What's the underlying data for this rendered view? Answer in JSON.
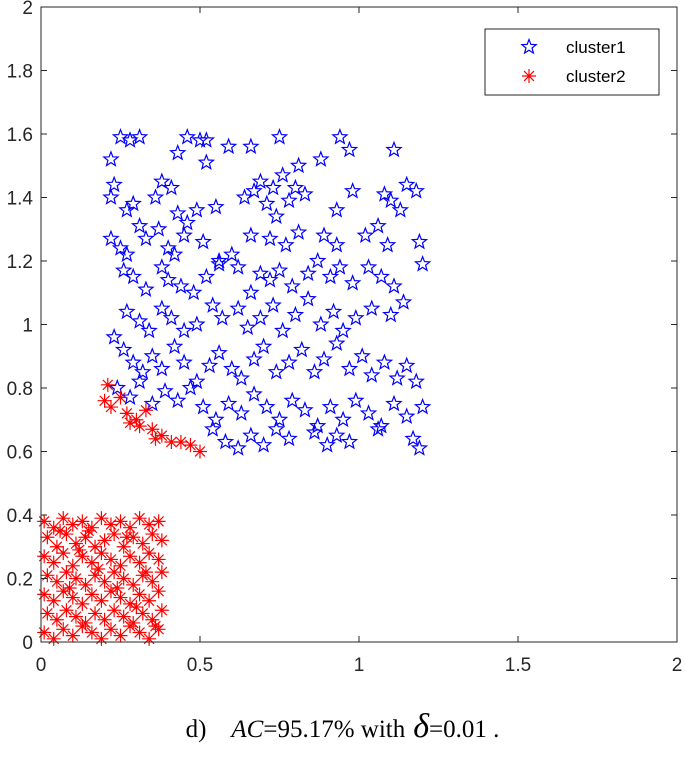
{
  "caption": {
    "prefix": "d)",
    "ac_symbol": "AC",
    "ac_text": "=95.17% with",
    "delta_symbol": "δ",
    "delta_text": "=0.01 ."
  },
  "chart_data": {
    "type": "scatter",
    "xlim": [
      0,
      2
    ],
    "ylim": [
      0,
      2
    ],
    "x_ticks": [
      "0",
      "0.5",
      "1",
      "1.5",
      "2"
    ],
    "y_ticks": [
      "0",
      "0.2",
      "0.4",
      "0.6",
      "0.8",
      "1",
      "1.2",
      "1.4",
      "1.6",
      "1.8",
      "2"
    ],
    "grid": false,
    "legend_position": "top-right",
    "series": [
      {
        "name": "cluster1",
        "marker": "pentagram",
        "color": "#0000ff",
        "points": [
          [
            0.25,
            1.59
          ],
          [
            0.28,
            1.58
          ],
          [
            0.31,
            1.59
          ],
          [
            0.46,
            1.59
          ],
          [
            0.5,
            1.58
          ],
          [
            0.52,
            1.58
          ],
          [
            0.75,
            1.59
          ],
          [
            0.94,
            1.59
          ],
          [
            1.11,
            1.55
          ],
          [
            0.22,
            1.52
          ],
          [
            0.43,
            1.54
          ],
          [
            0.52,
            1.51
          ],
          [
            0.59,
            1.56
          ],
          [
            0.66,
            1.56
          ],
          [
            0.81,
            1.5
          ],
          [
            0.88,
            1.52
          ],
          [
            0.97,
            1.55
          ],
          [
            0.23,
            1.44
          ],
          [
            0.38,
            1.45
          ],
          [
            0.41,
            1.43
          ],
          [
            0.69,
            1.45
          ],
          [
            0.73,
            1.43
          ],
          [
            0.76,
            1.47
          ],
          [
            0.8,
            1.43
          ],
          [
            0.83,
            1.41
          ],
          [
            0.98,
            1.42
          ],
          [
            1.15,
            1.44
          ],
          [
            0.22,
            1.4
          ],
          [
            0.27,
            1.36
          ],
          [
            0.29,
            1.38
          ],
          [
            0.36,
            1.4
          ],
          [
            0.43,
            1.35
          ],
          [
            0.46,
            1.32
          ],
          [
            0.49,
            1.36
          ],
          [
            0.55,
            1.37
          ],
          [
            0.64,
            1.4
          ],
          [
            0.67,
            1.42
          ],
          [
            0.71,
            1.38
          ],
          [
            0.74,
            1.34
          ],
          [
            0.78,
            1.39
          ],
          [
            0.93,
            1.36
          ],
          [
            1.08,
            1.41
          ],
          [
            1.1,
            1.39
          ],
          [
            1.13,
            1.36
          ],
          [
            1.18,
            1.42
          ],
          [
            0.22,
            1.27
          ],
          [
            0.25,
            1.24
          ],
          [
            0.27,
            1.22
          ],
          [
            0.31,
            1.31
          ],
          [
            0.33,
            1.27
          ],
          [
            0.37,
            1.3
          ],
          [
            0.4,
            1.24
          ],
          [
            0.42,
            1.22
          ],
          [
            0.45,
            1.28
          ],
          [
            0.51,
            1.26
          ],
          [
            0.56,
            1.2
          ],
          [
            0.6,
            1.22
          ],
          [
            0.66,
            1.28
          ],
          [
            0.72,
            1.27
          ],
          [
            0.77,
            1.25
          ],
          [
            0.81,
            1.29
          ],
          [
            0.89,
            1.28
          ],
          [
            0.93,
            1.25
          ],
          [
            1.02,
            1.28
          ],
          [
            1.06,
            1.31
          ],
          [
            1.09,
            1.25
          ],
          [
            1.19,
            1.26
          ],
          [
            0.26,
            1.17
          ],
          [
            0.29,
            1.15
          ],
          [
            0.33,
            1.11
          ],
          [
            0.38,
            1.18
          ],
          [
            0.4,
            1.14
          ],
          [
            0.44,
            1.12
          ],
          [
            0.48,
            1.1
          ],
          [
            0.52,
            1.15
          ],
          [
            0.56,
            1.19
          ],
          [
            0.62,
            1.18
          ],
          [
            0.66,
            1.1
          ],
          [
            0.69,
            1.16
          ],
          [
            0.72,
            1.14
          ],
          [
            0.75,
            1.17
          ],
          [
            0.79,
            1.12
          ],
          [
            0.84,
            1.16
          ],
          [
            0.87,
            1.2
          ],
          [
            0.91,
            1.15
          ],
          [
            0.94,
            1.18
          ],
          [
            0.98,
            1.13
          ],
          [
            1.03,
            1.18
          ],
          [
            1.07,
            1.15
          ],
          [
            1.11,
            1.12
          ],
          [
            1.2,
            1.19
          ],
          [
            0.27,
            1.04
          ],
          [
            0.31,
            1.01
          ],
          [
            0.34,
            0.98
          ],
          [
            0.38,
            1.05
          ],
          [
            0.41,
            1.02
          ],
          [
            0.45,
            0.98
          ],
          [
            0.49,
            1.0
          ],
          [
            0.54,
            1.06
          ],
          [
            0.57,
            1.02
          ],
          [
            0.62,
            1.05
          ],
          [
            0.65,
            0.99
          ],
          [
            0.69,
            1.02
          ],
          [
            0.73,
            1.06
          ],
          [
            0.76,
            0.98
          ],
          [
            0.8,
            1.03
          ],
          [
            0.84,
            1.08
          ],
          [
            0.88,
            1.0
          ],
          [
            0.92,
            1.04
          ],
          [
            0.95,
            0.98
          ],
          [
            0.99,
            1.02
          ],
          [
            1.04,
            1.05
          ],
          [
            1.1,
            1.03
          ],
          [
            1.14,
            1.07
          ],
          [
            0.23,
            0.96
          ],
          [
            0.26,
            0.92
          ],
          [
            0.29,
            0.88
          ],
          [
            0.32,
            0.85
          ],
          [
            0.35,
            0.9
          ],
          [
            0.38,
            0.86
          ],
          [
            0.42,
            0.93
          ],
          [
            0.45,
            0.88
          ],
          [
            0.49,
            0.82
          ],
          [
            0.53,
            0.87
          ],
          [
            0.56,
            0.91
          ],
          [
            0.6,
            0.86
          ],
          [
            0.63,
            0.83
          ],
          [
            0.67,
            0.89
          ],
          [
            0.7,
            0.93
          ],
          [
            0.74,
            0.85
          ],
          [
            0.78,
            0.88
          ],
          [
            0.82,
            0.92
          ],
          [
            0.86,
            0.85
          ],
          [
            0.89,
            0.89
          ],
          [
            0.93,
            0.94
          ],
          [
            0.97,
            0.86
          ],
          [
            1.01,
            0.9
          ],
          [
            1.04,
            0.84
          ],
          [
            1.08,
            0.88
          ],
          [
            1.12,
            0.83
          ],
          [
            1.15,
            0.87
          ],
          [
            1.18,
            0.82
          ],
          [
            0.24,
            0.8
          ],
          [
            0.28,
            0.77
          ],
          [
            0.31,
            0.82
          ],
          [
            0.35,
            0.75
          ],
          [
            0.39,
            0.79
          ],
          [
            0.43,
            0.76
          ],
          [
            0.47,
            0.8
          ],
          [
            0.51,
            0.74
          ],
          [
            0.55,
            0.7
          ],
          [
            0.59,
            0.75
          ],
          [
            0.63,
            0.72
          ],
          [
            0.67,
            0.78
          ],
          [
            0.71,
            0.74
          ],
          [
            0.75,
            0.7
          ],
          [
            0.79,
            0.76
          ],
          [
            0.83,
            0.73
          ],
          [
            0.87,
            0.68
          ],
          [
            0.91,
            0.74
          ],
          [
            0.95,
            0.7
          ],
          [
            0.99,
            0.76
          ],
          [
            1.03,
            0.72
          ],
          [
            1.07,
            0.68
          ],
          [
            1.11,
            0.75
          ],
          [
            1.15,
            0.71
          ],
          [
            1.2,
            0.74
          ],
          [
            0.54,
            0.67
          ],
          [
            0.58,
            0.63
          ],
          [
            0.62,
            0.61
          ],
          [
            0.66,
            0.65
          ],
          [
            0.7,
            0.62
          ],
          [
            0.74,
            0.67
          ],
          [
            0.78,
            0.64
          ],
          [
            0.86,
            0.66
          ],
          [
            0.9,
            0.62
          ],
          [
            0.93,
            0.65
          ],
          [
            0.97,
            0.63
          ],
          [
            1.06,
            0.67
          ],
          [
            1.17,
            0.64
          ],
          [
            1.19,
            0.61
          ]
        ]
      },
      {
        "name": "cluster2",
        "marker": "asterisk",
        "color": "#ff0000",
        "points": [
          [
            0.21,
            0.81
          ],
          [
            0.2,
            0.76
          ],
          [
            0.22,
            0.74
          ],
          [
            0.25,
            0.77
          ],
          [
            0.27,
            0.72
          ],
          [
            0.28,
            0.69
          ],
          [
            0.3,
            0.7
          ],
          [
            0.31,
            0.68
          ],
          [
            0.33,
            0.73
          ],
          [
            0.35,
            0.67
          ],
          [
            0.36,
            0.64
          ],
          [
            0.38,
            0.65
          ],
          [
            0.41,
            0.63
          ],
          [
            0.44,
            0.63
          ],
          [
            0.47,
            0.62
          ],
          [
            0.5,
            0.6
          ],
          [
            0.01,
            0.38
          ],
          [
            0.04,
            0.36
          ],
          [
            0.07,
            0.39
          ],
          [
            0.1,
            0.37
          ],
          [
            0.13,
            0.38
          ],
          [
            0.16,
            0.36
          ],
          [
            0.19,
            0.39
          ],
          [
            0.22,
            0.37
          ],
          [
            0.25,
            0.38
          ],
          [
            0.28,
            0.36
          ],
          [
            0.31,
            0.39
          ],
          [
            0.34,
            0.37
          ],
          [
            0.37,
            0.38
          ],
          [
            0.02,
            0.33
          ],
          [
            0.05,
            0.3
          ],
          [
            0.08,
            0.34
          ],
          [
            0.11,
            0.31
          ],
          [
            0.14,
            0.33
          ],
          [
            0.17,
            0.3
          ],
          [
            0.2,
            0.32
          ],
          [
            0.23,
            0.34
          ],
          [
            0.26,
            0.3
          ],
          [
            0.29,
            0.33
          ],
          [
            0.32,
            0.31
          ],
          [
            0.35,
            0.34
          ],
          [
            0.38,
            0.32
          ],
          [
            0.01,
            0.27
          ],
          [
            0.04,
            0.25
          ],
          [
            0.07,
            0.28
          ],
          [
            0.1,
            0.24
          ],
          [
            0.13,
            0.27
          ],
          [
            0.16,
            0.25
          ],
          [
            0.19,
            0.28
          ],
          [
            0.22,
            0.26
          ],
          [
            0.25,
            0.24
          ],
          [
            0.28,
            0.27
          ],
          [
            0.31,
            0.25
          ],
          [
            0.34,
            0.28
          ],
          [
            0.37,
            0.26
          ],
          [
            0.02,
            0.21
          ],
          [
            0.05,
            0.19
          ],
          [
            0.08,
            0.22
          ],
          [
            0.11,
            0.2
          ],
          [
            0.14,
            0.18
          ],
          [
            0.17,
            0.21
          ],
          [
            0.2,
            0.19
          ],
          [
            0.23,
            0.22
          ],
          [
            0.26,
            0.2
          ],
          [
            0.29,
            0.18
          ],
          [
            0.32,
            0.21
          ],
          [
            0.35,
            0.19
          ],
          [
            0.38,
            0.22
          ],
          [
            0.01,
            0.15
          ],
          [
            0.04,
            0.13
          ],
          [
            0.07,
            0.16
          ],
          [
            0.1,
            0.14
          ],
          [
            0.13,
            0.12
          ],
          [
            0.16,
            0.15
          ],
          [
            0.19,
            0.13
          ],
          [
            0.22,
            0.16
          ],
          [
            0.25,
            0.14
          ],
          [
            0.28,
            0.12
          ],
          [
            0.31,
            0.15
          ],
          [
            0.34,
            0.13
          ],
          [
            0.37,
            0.16
          ],
          [
            0.02,
            0.09
          ],
          [
            0.05,
            0.07
          ],
          [
            0.08,
            0.1
          ],
          [
            0.11,
            0.08
          ],
          [
            0.14,
            0.06
          ],
          [
            0.17,
            0.09
          ],
          [
            0.2,
            0.07
          ],
          [
            0.23,
            0.1
          ],
          [
            0.26,
            0.08
          ],
          [
            0.29,
            0.06
          ],
          [
            0.32,
            0.09
          ],
          [
            0.35,
            0.07
          ],
          [
            0.38,
            0.1
          ],
          [
            0.01,
            0.03
          ],
          [
            0.04,
            0.01
          ],
          [
            0.07,
            0.04
          ],
          [
            0.1,
            0.02
          ],
          [
            0.13,
            0.05
          ],
          [
            0.16,
            0.03
          ],
          [
            0.19,
            0.01
          ],
          [
            0.22,
            0.04
          ],
          [
            0.25,
            0.02
          ],
          [
            0.28,
            0.05
          ],
          [
            0.31,
            0.03
          ],
          [
            0.34,
            0.01
          ],
          [
            0.37,
            0.04
          ],
          [
            0.06,
            0.35
          ],
          [
            0.12,
            0.29
          ],
          [
            0.18,
            0.23
          ],
          [
            0.24,
            0.17
          ],
          [
            0.3,
            0.11
          ],
          [
            0.36,
            0.05
          ],
          [
            0.09,
            0.17
          ],
          [
            0.15,
            0.35
          ],
          [
            0.27,
            0.33
          ],
          [
            0.33,
            0.22
          ]
        ]
      }
    ]
  }
}
